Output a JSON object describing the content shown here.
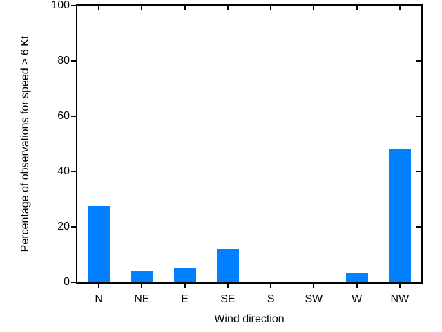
{
  "chart_data": {
    "type": "bar",
    "title": "",
    "categories": [
      "N",
      "NE",
      "E",
      "SE",
      "S",
      "SW",
      "W",
      "NW"
    ],
    "values": [
      27.5,
      4,
      5,
      12,
      0,
      0,
      3.5,
      48
    ],
    "xlabel": "Wind direction",
    "ylabel": "Percentage of observations for speed > 6 Kt",
    "ylim": [
      0,
      100
    ],
    "yticks": [
      0,
      20,
      40,
      60,
      80,
      100
    ],
    "bar_color": "#0080ff",
    "axis_color": "#000000",
    "background_color": "#ffffff",
    "grid": false,
    "legend": false,
    "frame": "full-box",
    "tick_style": "left-bottom-outward, top-right-inward"
  }
}
